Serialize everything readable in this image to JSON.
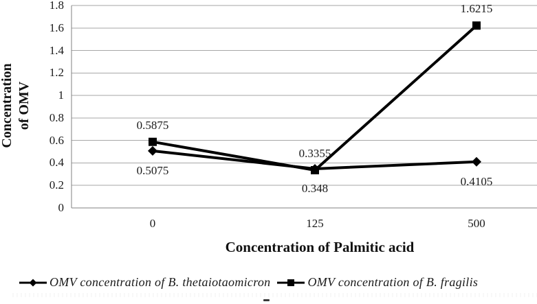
{
  "chart_data": {
    "type": "line",
    "title": "",
    "xlabel": "Concentration of Palmitic acid",
    "ylabel": "Concentration of OMV",
    "ylabel_lines": [
      "Concentration",
      "of OMV"
    ],
    "categories": [
      "0",
      "125",
      "500"
    ],
    "x_values": [
      0,
      125,
      500
    ],
    "ylim": [
      0,
      1.8
    ],
    "ytick_interval": 0.2,
    "yticks": [
      "0",
      "0.2",
      "0.4",
      "0.6",
      "0.8",
      "1",
      "1.2",
      "1.4",
      "1.6",
      "1.8"
    ],
    "grid": true,
    "legend_position": "bottom",
    "series": [
      {
        "name": "OMV concentration of B. thetaiotaomicron",
        "marker": "diamond",
        "color": "#000000",
        "values": [
          0.5075,
          0.348,
          0.4105
        ],
        "data_labels": [
          "0.5075",
          "0.348",
          "0.4105"
        ],
        "label_position": "below"
      },
      {
        "name": "OMV concentration of B. fragilis",
        "marker": "square",
        "color": "#000000",
        "values": [
          0.5875,
          0.3355,
          1.6215
        ],
        "data_labels": [
          "0.5875",
          "0.3355",
          "1.6215"
        ],
        "label_position": "above"
      }
    ]
  },
  "colors": {
    "series_line": "#000000",
    "gridline": "#a6a6a6",
    "axis_line": "#808080",
    "text": "#1a1a1a",
    "background": "#ffffff"
  }
}
